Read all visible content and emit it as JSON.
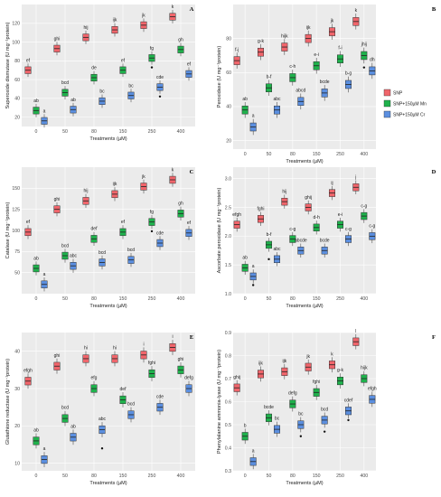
{
  "treatments_title": "Treatments (µM)",
  "legend": {
    "items": [
      {
        "label": "SNP",
        "color": "#f0656b"
      },
      {
        "label": "SNP+150µM Mn",
        "color": "#1fb14c"
      },
      {
        "label": "SNP+150µM Cr",
        "color": "#5b8fe0"
      }
    ]
  },
  "chart_data": [
    {
      "panel": "A",
      "type": "box",
      "ylabel": "Superoxide dismutase (U mg⁻¹protein)",
      "xlabel": "Treatments (µM)",
      "categories": [
        "0",
        "50",
        "80",
        "150",
        "250",
        "400"
      ],
      "ylim": [
        10,
        140
      ],
      "yticks": [
        20,
        40,
        60,
        80,
        100,
        120
      ],
      "grid": true,
      "series": [
        {
          "name": "SNP",
          "values": [
            70,
            93,
            105,
            113,
            118,
            127
          ],
          "letters": [
            "ef",
            "ghi",
            "hij",
            "ijk",
            "jk",
            "k"
          ]
        },
        {
          "name": "SNP+150µM Mn",
          "values": [
            27,
            46,
            62,
            70,
            83,
            92
          ],
          "letters": [
            "ab",
            "bcd",
            "de",
            "ef",
            "fg",
            "gh"
          ],
          "outliers": [
            [
              250,
              73
            ]
          ]
        },
        {
          "name": "SNP+150µM Cr",
          "values": [
            16,
            28,
            37,
            43,
            52,
            66
          ],
          "letters": [
            "a",
            "ab",
            "bc",
            "bc",
            "cde",
            "ef"
          ],
          "outliers": [
            [
              250,
              42
            ]
          ]
        }
      ]
    },
    {
      "panel": "B",
      "type": "box",
      "ylabel": "Peroxidase (U mg⁻¹protein)",
      "xlabel": "Treatments (µM)",
      "categories": [
        "0",
        "50",
        "80",
        "150",
        "250",
        "400"
      ],
      "ylim": [
        15,
        100
      ],
      "yticks": [
        20,
        40,
        60,
        80
      ],
      "grid": true,
      "series": [
        {
          "name": "SNP",
          "values": [
            67,
            72,
            75,
            80,
            84,
            90
          ],
          "letters": [
            "f-j",
            "g-k",
            "hijk",
            "ijk",
            "jk",
            "k"
          ]
        },
        {
          "name": "SNP+150µM Mn",
          "values": [
            38,
            51,
            57,
            64,
            68,
            70
          ],
          "letters": [
            "ab",
            "b-f",
            "c-h",
            "e-i",
            "f-i",
            "jhij"
          ],
          "outliers": [
            [
              400,
              63
            ]
          ]
        },
        {
          "name": "SNP+150µM Cr",
          "values": [
            28,
            38,
            43,
            48,
            53,
            61
          ],
          "letters": [
            "a",
            "abc",
            "abcd",
            "bcde",
            "b-g",
            "dh"
          ]
        }
      ]
    },
    {
      "panel": "C",
      "type": "box",
      "ylabel": "Catalase (U mg⁻¹protein)",
      "xlabel": "Treatments (µM)",
      "categories": [
        "0",
        "50",
        "80",
        "150",
        "250",
        "400"
      ],
      "ylim": [
        25,
        175
      ],
      "yticks": [
        50,
        75,
        100,
        125,
        150
      ],
      "grid": true,
      "series": [
        {
          "name": "SNP",
          "values": [
            98,
            125,
            135,
            143,
            152,
            160
          ],
          "letters": [
            "ef",
            "ghi",
            "hij",
            "ijk",
            "jk",
            "k"
          ]
        },
        {
          "name": "SNP+150µM Mn",
          "values": [
            55,
            70,
            90,
            98,
            110,
            120
          ],
          "letters": [
            "ab",
            "bcd",
            "def",
            "ef",
            "fg",
            "gh"
          ],
          "outliers": [
            [
              250,
              99
            ]
          ]
        },
        {
          "name": "SNP+150µM Cr",
          "values": [
            36,
            58,
            62,
            65,
            85,
            97
          ],
          "letters": [
            "a",
            "abc",
            "bcd",
            "bcd",
            "cde",
            "ef"
          ]
        }
      ]
    },
    {
      "panel": "D",
      "type": "box",
      "ylabel": "Ascorbate peroxidase (U mg⁻¹protein)",
      "xlabel": "Treatments (µM)",
      "categories": [
        "0",
        "50",
        "80",
        "150",
        "250",
        "400"
      ],
      "ylim": [
        1.0,
        3.2
      ],
      "yticks": [
        1.0,
        1.5,
        2.0,
        2.5,
        3.0
      ],
      "grid": true,
      "series": [
        {
          "name": "SNP",
          "values": [
            2.2,
            2.3,
            2.6,
            2.5,
            2.75,
            2.85
          ],
          "letters": [
            "efgh",
            "fghi",
            "hij",
            "ghij",
            "ij",
            "j"
          ]
        },
        {
          "name": "SNP+150µM Mn",
          "values": [
            1.45,
            1.85,
            1.95,
            2.15,
            2.2,
            2.35
          ],
          "letters": [
            "ab",
            "b-f",
            "c-g",
            "d-h",
            "e-i",
            "c-g"
          ],
          "outliers": [
            [
              50,
              1.6
            ]
          ]
        },
        {
          "name": "SNP+150µM Cr",
          "values": [
            1.3,
            1.6,
            1.75,
            1.75,
            1.95,
            2.0
          ],
          "letters": [
            "a",
            "abc",
            "abcde",
            "bcde",
            "c-g",
            "c-g"
          ],
          "outliers": [
            [
              0,
              1.15
            ]
          ]
        }
      ]
    },
    {
      "panel": "E",
      "type": "box",
      "ylabel": "Glutathione reductase (U mg⁻¹protein)",
      "xlabel": "Treatments (µM)",
      "categories": [
        "0",
        "50",
        "80",
        "150",
        "250",
        "400"
      ],
      "ylim": [
        8,
        45
      ],
      "yticks": [
        10,
        20,
        30,
        40
      ],
      "grid": true,
      "series": [
        {
          "name": "SNP",
          "values": [
            32,
            36,
            38,
            38,
            39,
            41
          ],
          "letters": [
            "efgh",
            "ghi",
            "hi",
            "hi",
            "i",
            "i"
          ]
        },
        {
          "name": "SNP+150µM Mn",
          "values": [
            16,
            22,
            30,
            27,
            34,
            35
          ],
          "letters": [
            "ab",
            "bcd",
            "efg",
            "def",
            "fghi",
            "ghi"
          ]
        },
        {
          "name": "SNP+150µM Cr",
          "values": [
            11,
            17,
            19,
            23,
            25,
            30
          ],
          "letters": [
            "a",
            "ab",
            "abc",
            "bcd",
            "cde",
            "defg"
          ],
          "outliers": [
            [
              80,
              14
            ]
          ]
        }
      ]
    },
    {
      "panel": "F",
      "type": "box",
      "ylabel": "Phenylalanine ammonia-lyase (U mg⁻¹protein)",
      "xlabel": "Treatments (µM)",
      "categories": [
        "0",
        "50",
        "80",
        "150",
        "250",
        "400"
      ],
      "ylim": [
        0.3,
        0.9
      ],
      "yticks": [
        0.3,
        0.4,
        0.5,
        0.6,
        0.7,
        0.8,
        0.9
      ],
      "grid": true,
      "series": [
        {
          "name": "SNP",
          "values": [
            0.66,
            0.72,
            0.73,
            0.75,
            0.76,
            0.86
          ],
          "letters": [
            "ghij",
            "ijk",
            "ijk",
            "jk",
            "k",
            "l"
          ]
        },
        {
          "name": "SNP+150µM Mn",
          "values": [
            0.45,
            0.53,
            0.59,
            0.64,
            0.69,
            0.7
          ],
          "letters": [
            "b",
            "bcde",
            "defg",
            "fghi",
            "g-k",
            "hijk"
          ]
        },
        {
          "name": "SNP+150µM Cr",
          "values": [
            0.34,
            0.48,
            0.5,
            0.52,
            0.56,
            0.61
          ],
          "letters": [
            "a",
            "bc",
            "bc",
            "bcd",
            "cdef",
            "efgh"
          ],
          "outliers": [
            [
              80,
              0.45
            ],
            [
              150,
              0.47
            ],
            [
              250,
              0.52
            ]
          ]
        }
      ]
    }
  ]
}
